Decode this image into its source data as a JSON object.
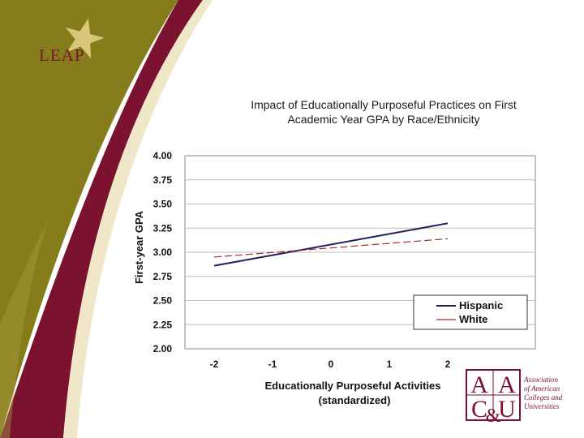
{
  "header": {
    "logo_text": "LEAP"
  },
  "colors": {
    "olive": "#857d1c",
    "maroon": "#7a1230",
    "cream": "#efe7c7",
    "hispanic_line": "#1f1f5e",
    "white_line": "#b02a2a"
  },
  "chart_data": {
    "type": "line",
    "title_lines": [
      "Impact of Educationally Purposeful Practices on First",
      "Academic Year GPA by Race/Ethnicity"
    ],
    "xlabel_lines": [
      "Educationally Purposeful Activities",
      "(standardized)"
    ],
    "ylabel": "First-year GPA",
    "x": [
      -2,
      2
    ],
    "x_ticks": [
      "-2",
      "-1",
      "0",
      "1",
      "2"
    ],
    "xlim": [
      -2.5,
      3.5
    ],
    "ylim": [
      2.0,
      4.0
    ],
    "y_ticks": [
      "4.00",
      "3.75",
      "3.50",
      "3.25",
      "3.00",
      "2.75",
      "2.50",
      "2.25",
      "2.00"
    ],
    "grid": "horizontal",
    "legend_position": "bottom-right",
    "series": [
      {
        "name": "Hispanic",
        "values": [
          2.86,
          3.3
        ],
        "style": "solid",
        "color": "#1f1f5e"
      },
      {
        "name": "White",
        "values": [
          2.95,
          3.14
        ],
        "style": "dashed",
        "color": "#b02a2a"
      }
    ]
  },
  "footer": {
    "logo_letters": [
      "A",
      "A",
      "C",
      "&",
      "U"
    ],
    "org_name_lines": [
      "Association",
      "of American",
      "Colleges and",
      "Universities"
    ]
  }
}
